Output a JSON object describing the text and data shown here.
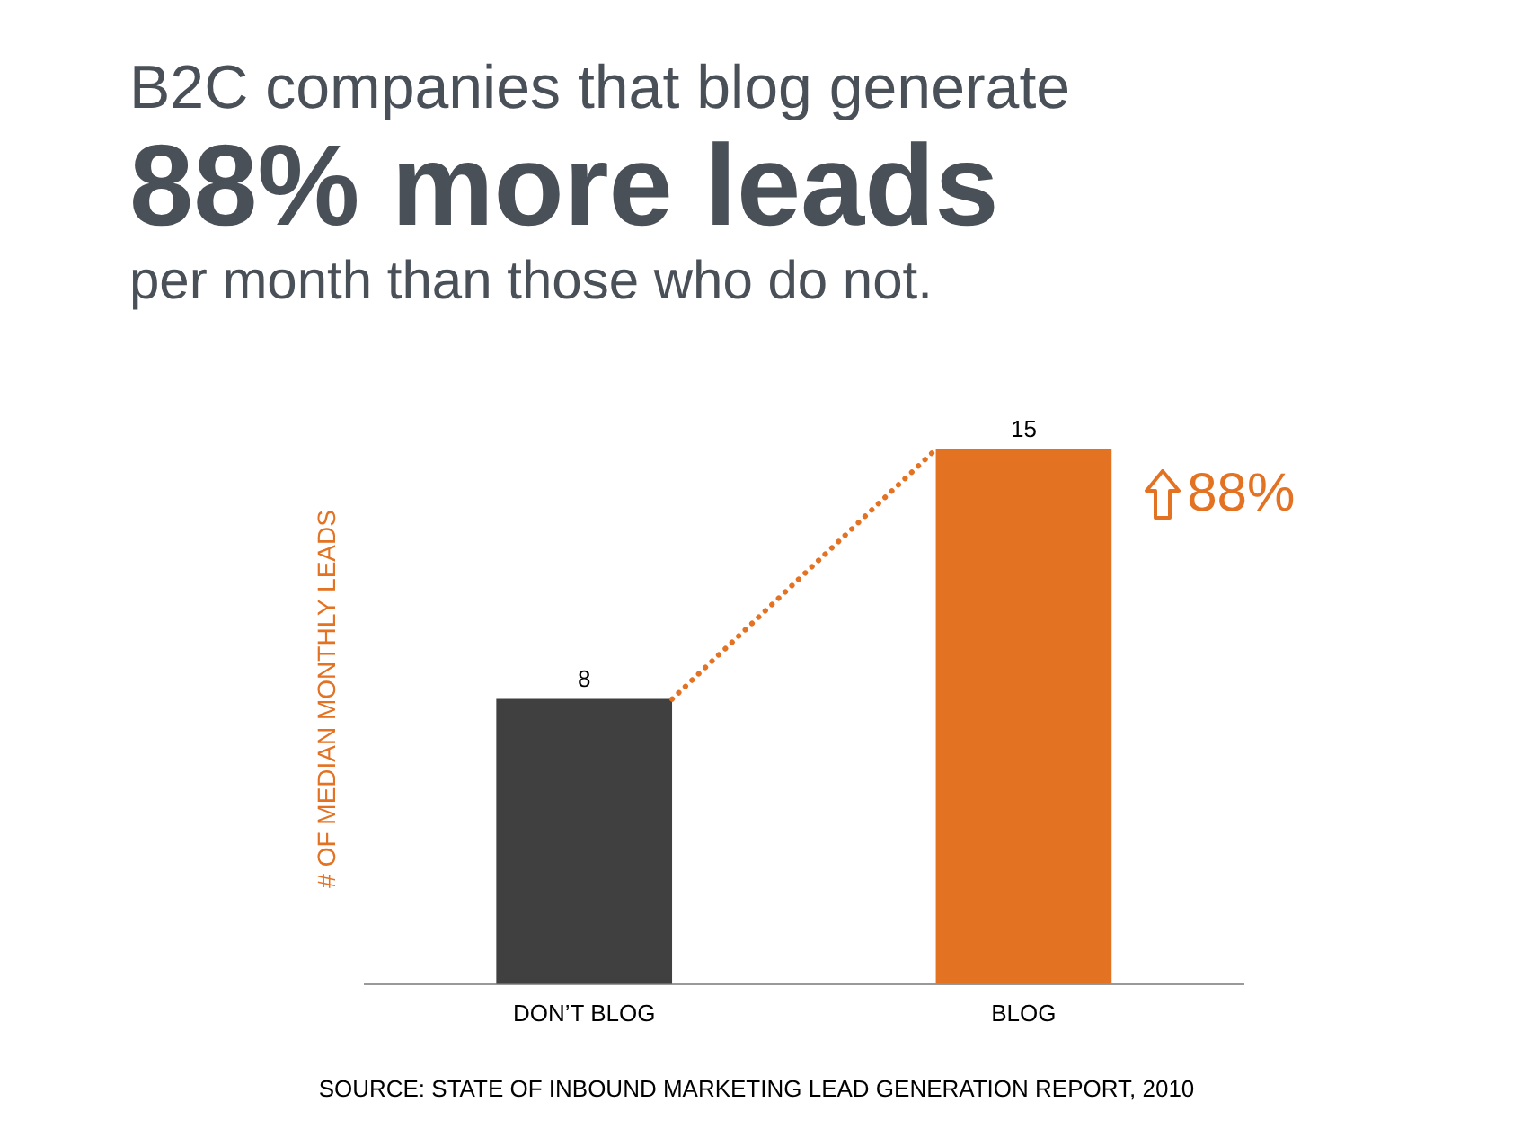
{
  "chart_data": {
    "type": "bar",
    "title": "B2C companies that blog generate",
    "subtitle": "88% more leads",
    "ylabel": "# OF MEDIAN MONTHLY LEADS",
    "categories": [
      "DON’T BLOG",
      "BLOG"
    ],
    "series": [
      {
        "colors": [
          "#404040",
          "#e37222"
        ],
        "values": [
          8,
          15
        ]
      }
    ],
    "annotations": [
      "per month than those who do not.",
      "88%",
      "SOURCE: STATE OF INBOUND MARKETING LEAD GENERATION REPORT, 2010"
    ],
    "data_labels": true,
    "legend": false,
    "grid": false,
    "tick_labels": "x"
  }
}
